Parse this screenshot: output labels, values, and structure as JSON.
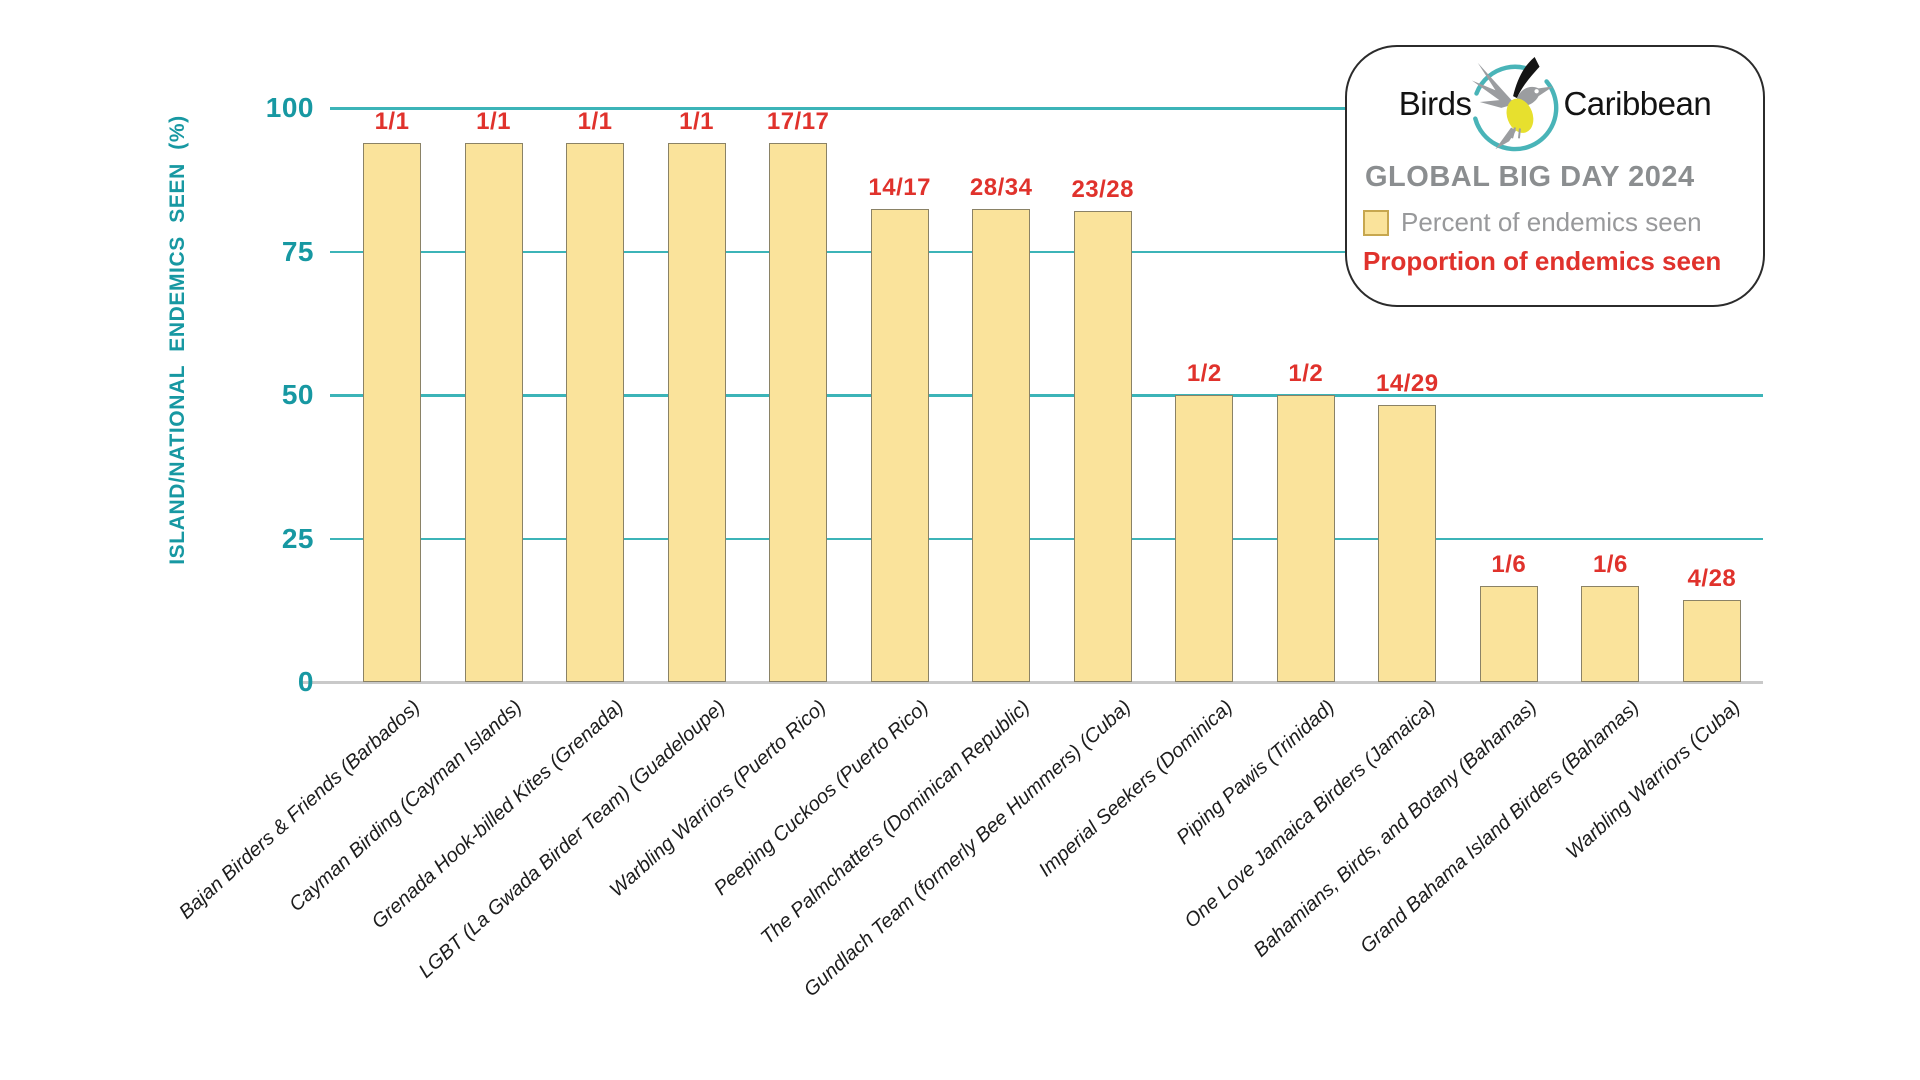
{
  "chart_data": {
    "type": "bar",
    "title": "GLOBAL BIG DAY 2024",
    "brand": "Birds Caribbean",
    "ylabel": "ISLAND/NATIONAL ENDEMICS SEEN (%)",
    "xlabel": "",
    "ylim": [
      0,
      100
    ],
    "yticks": [
      100,
      75,
      50,
      25,
      0
    ],
    "grid": true,
    "legend_position": "top-right",
    "categories": [
      "Bajan Birders & Friends (Barbados)",
      "Cayman Birding (Cayman Islands)",
      "Grenada Hook-billed Kites (Grenada)",
      "LGBT (La Gwada Birder Team) (Guadeloupe)",
      "Warbling Warriors (Puerto Rico)",
      "Peeping Cuckoos (Puerto Rico)",
      "The Palmchatters (Dominican Republic)",
      "Gundlach Team (formerly Bee Hummers) (Cuba)",
      "Imperial Seekers (Dominica)",
      "Piping Pawis (Trinidad)",
      "One Love Jamaica Birders (Jamaica)",
      "Bahamians, Birds, and Botany (Bahamas)",
      "Grand Bahama Island Birders (Bahamas)",
      "Warbling Warriors (Cuba)"
    ],
    "series": [
      {
        "name": "Percent of endemics seen",
        "values": [
          100,
          100,
          100,
          100,
          100,
          82.4,
          82.4,
          82.1,
          50,
          50,
          48.3,
          16.7,
          16.7,
          14.3
        ]
      },
      {
        "name": "Proportion of endemics seen",
        "values": [
          "1/1",
          "1/1",
          "1/1",
          "1/1",
          "17/17",
          "14/17",
          "28/34",
          "23/28",
          "1/2",
          "1/2",
          "14/29",
          "1/6",
          "1/6",
          "4/28"
        ]
      }
    ]
  },
  "legend": {
    "brand_left": "Birds",
    "brand_right": "Caribbean",
    "title": "GLOBAL BIG DAY 2024",
    "item_swatch_label": "Percent of endemics seen",
    "item_red_label": "Proportion of endemics seen"
  },
  "colors": {
    "teal_line": "#3cb4b8",
    "teal_text": "#1798a2",
    "red": "#e0322c",
    "bar_fill": "#fae39b",
    "bar_border": "#8a8266",
    "axis_gray": "#c9c9c9",
    "legend_title_gray": "#8b8e90",
    "legend_text_gray": "#98999b"
  }
}
